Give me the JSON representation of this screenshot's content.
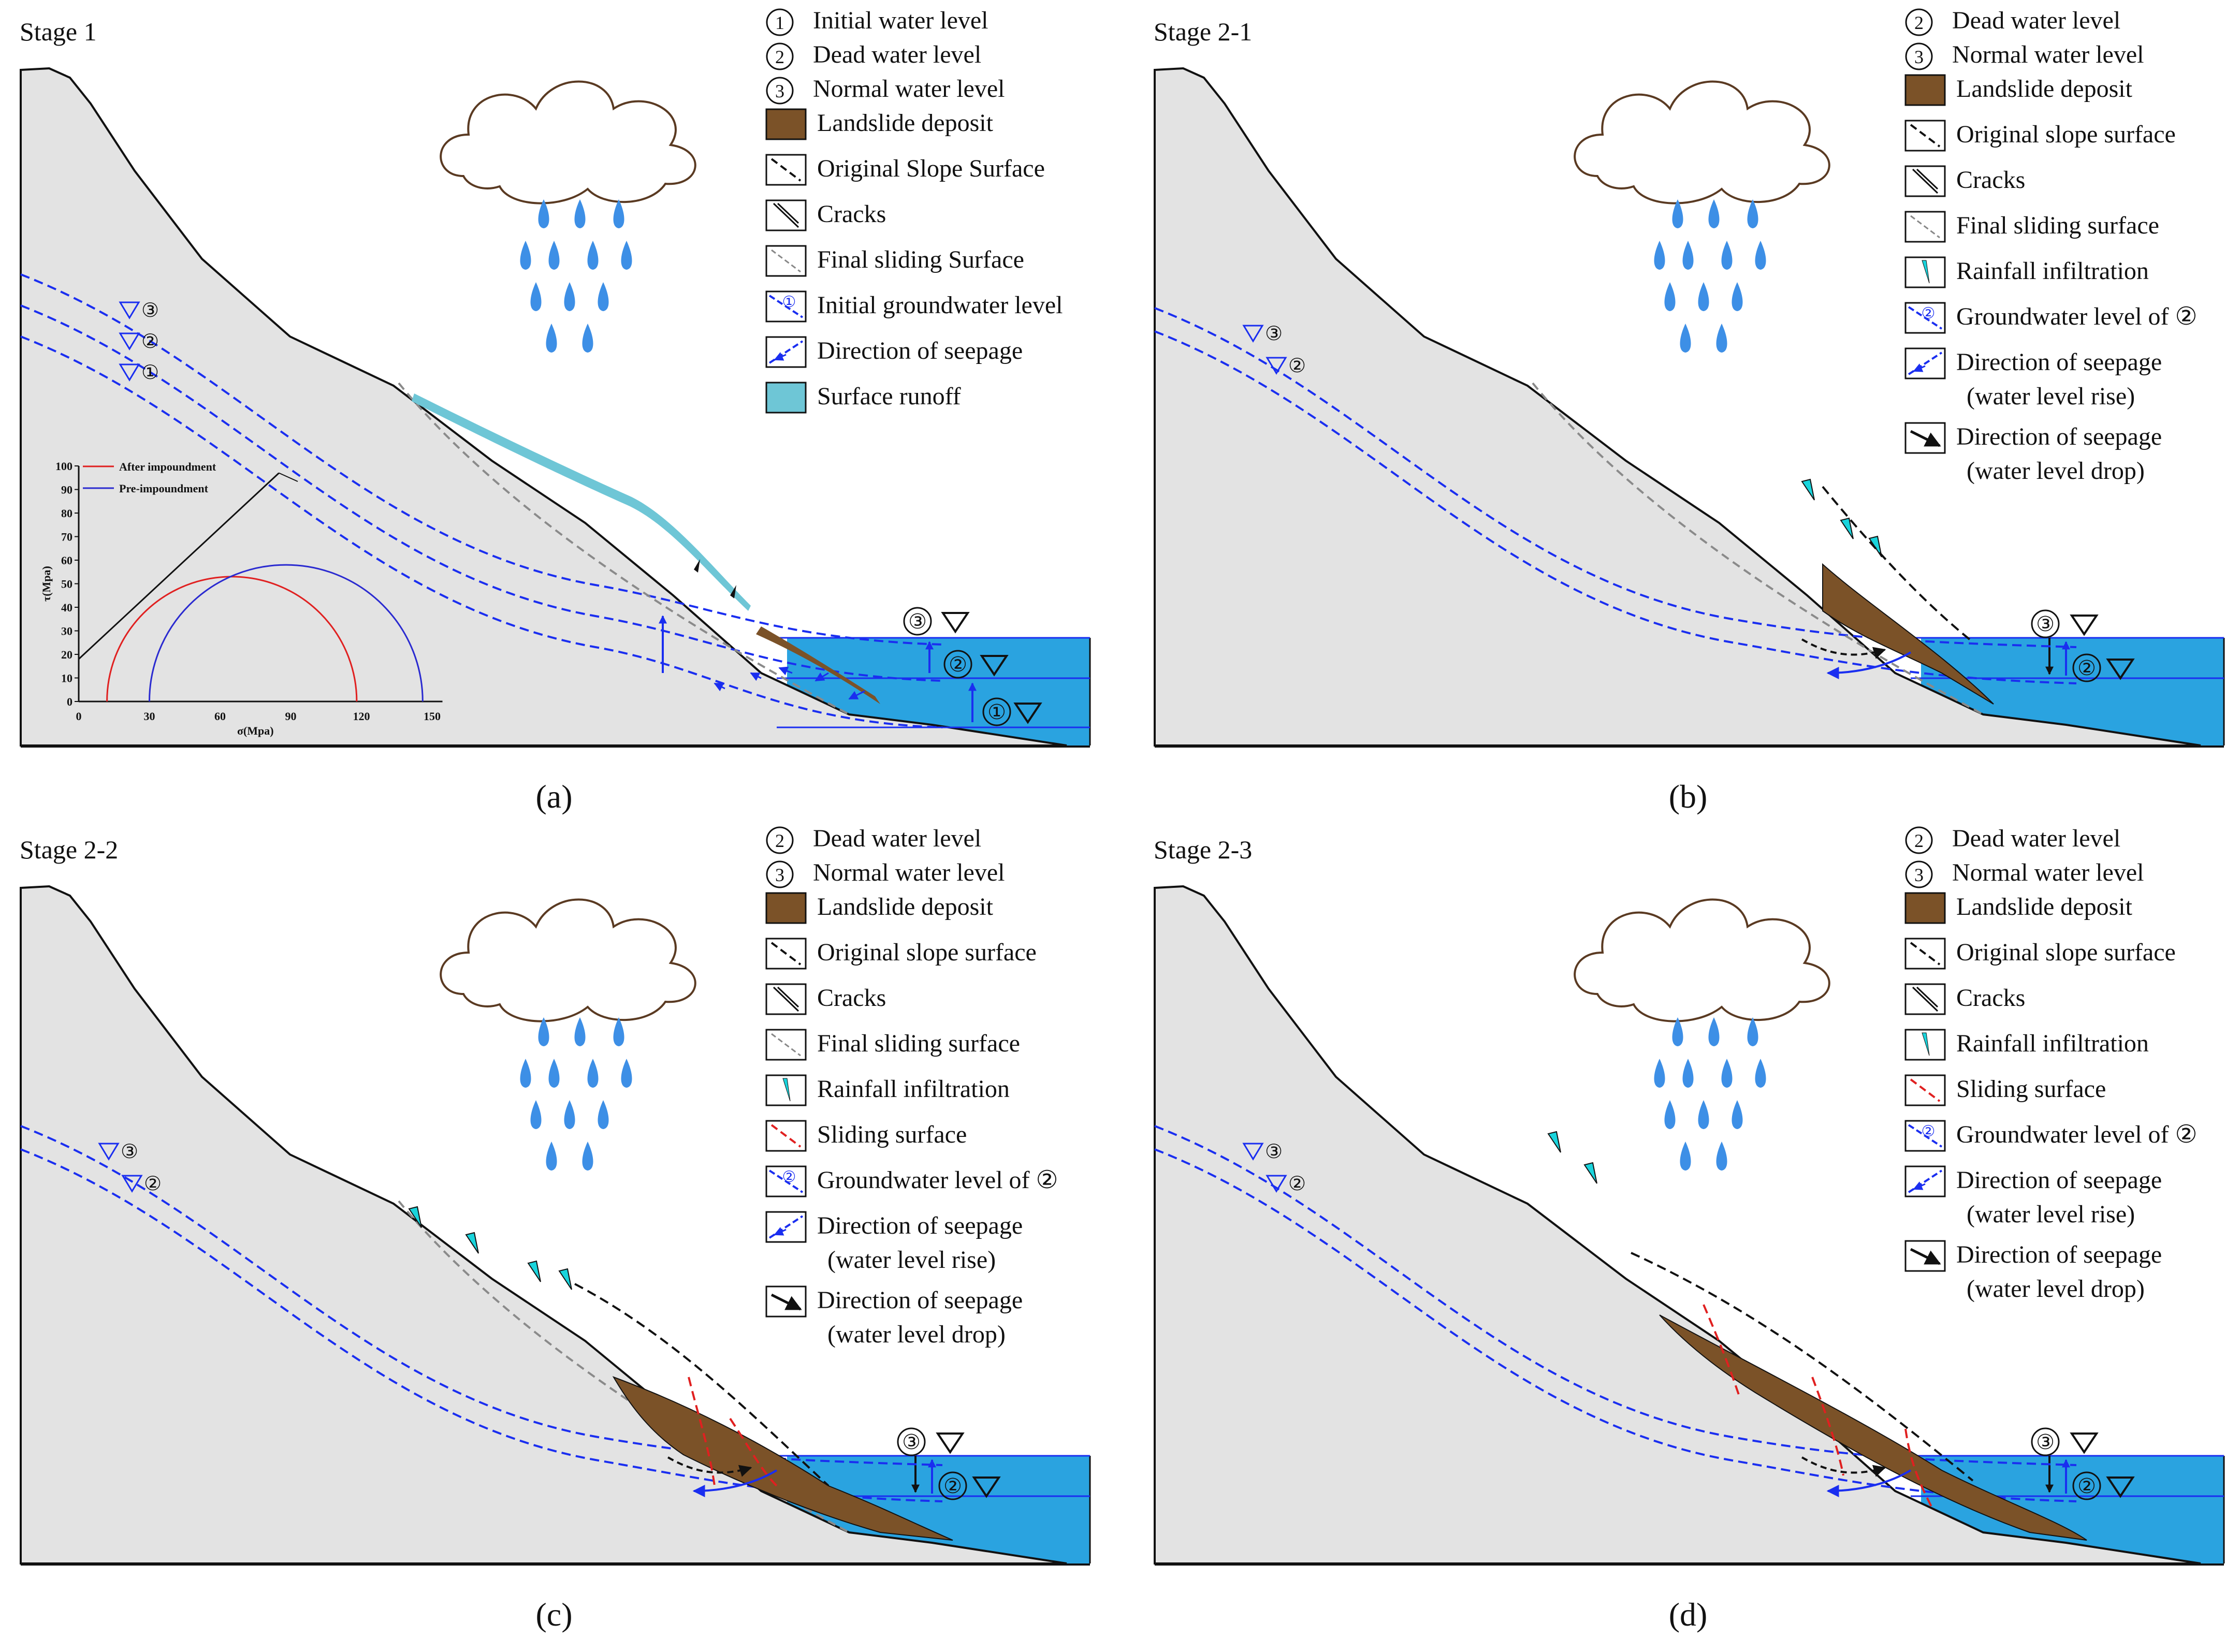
{
  "colors": {
    "ground": "#e3e3e3",
    "water": "#2aa3e0",
    "deposit": "#7b5228",
    "runoff": "#6ec6d6",
    "groundwater": "#1a2ef0",
    "sliding": "#e02020",
    "infiltration": "#19d4dc",
    "rain": "#3d8fe6",
    "mohr_after": "#e02020",
    "mohr_before": "#2a2ad0"
  },
  "panels": [
    {
      "id": "a",
      "stage": "Stage 1",
      "caption": "(a)",
      "legend": [
        {
          "icon": "circle-1-icon",
          "label": "Initial water level"
        },
        {
          "icon": "circle-2-icon",
          "label": "Dead water level"
        },
        {
          "icon": "circle-3-icon",
          "label": "Normal water level"
        },
        {
          "icon": "landslide-deposit-swatch-icon",
          "label": "Landslide deposit"
        },
        {
          "icon": "original-slope-surface-icon",
          "label": "Original Slope Surface"
        },
        {
          "icon": "cracks-icon",
          "label": "Cracks"
        },
        {
          "icon": "final-sliding-surface-icon",
          "label": "Final sliding Surface"
        },
        {
          "icon": "groundwater-level-icon",
          "label": "Initial groundwater level",
          "marker": "①"
        },
        {
          "icon": "seepage-rise-icon",
          "label": "Direction of seepage"
        },
        {
          "icon": "surface-runoff-swatch-icon",
          "label": "Surface runoff"
        }
      ],
      "gw_markers": [
        "③",
        "②",
        "①"
      ],
      "water_markers": [
        "③",
        "②",
        "①"
      ],
      "mohr": {
        "legend": [
          "After impoundment",
          "Pre-impoundment"
        ],
        "xlabel": "σ(Mpa)",
        "ylabel": "τ(Mpa)",
        "xticks": [
          "0",
          "30",
          "60",
          "90",
          "120",
          "150"
        ],
        "yticks": [
          "0",
          "10",
          "20",
          "30",
          "40",
          "50",
          "60",
          "70",
          "80",
          "90",
          "100"
        ]
      }
    },
    {
      "id": "b",
      "stage": "Stage 2-1",
      "caption": "(b)",
      "legend": [
        {
          "icon": "circle-2-icon",
          "label": "Dead water level"
        },
        {
          "icon": "circle-3-icon",
          "label": "Normal water level"
        },
        {
          "icon": "landslide-deposit-swatch-icon",
          "label": "Landslide deposit"
        },
        {
          "icon": "original-slope-surface-icon",
          "label": "Original slope surface"
        },
        {
          "icon": "cracks-icon",
          "label": "Cracks"
        },
        {
          "icon": "final-sliding-surface-icon",
          "label": "Final sliding surface"
        },
        {
          "icon": "rainfall-infiltration-icon",
          "label": "Rainfall infiltration"
        },
        {
          "icon": "groundwater-level-icon",
          "label": "Groundwater level of ②",
          "marker": "②"
        },
        {
          "icon": "seepage-rise-icon",
          "label": "Direction of seepage",
          "label2": "(water level rise)"
        },
        {
          "icon": "seepage-drop-icon",
          "label": "Direction of seepage",
          "label2": "(water level drop)"
        }
      ],
      "gw_markers": [
        "③",
        "②"
      ],
      "water_markers": [
        "③",
        "②"
      ]
    },
    {
      "id": "c",
      "stage": "Stage 2-2",
      "caption": "(c)",
      "legend": [
        {
          "icon": "circle-2-icon",
          "label": "Dead water level"
        },
        {
          "icon": "circle-3-icon",
          "label": "Normal water level"
        },
        {
          "icon": "landslide-deposit-swatch-icon",
          "label": "Landslide deposit"
        },
        {
          "icon": "original-slope-surface-icon",
          "label": "Original slope surface"
        },
        {
          "icon": "cracks-icon",
          "label": "Cracks"
        },
        {
          "icon": "final-sliding-surface-icon",
          "label": "Final sliding surface"
        },
        {
          "icon": "rainfall-infiltration-icon",
          "label": "Rainfall infiltration"
        },
        {
          "icon": "sliding-surface-icon",
          "label": "Sliding surface"
        },
        {
          "icon": "groundwater-level-icon",
          "label": "Groundwater level of ②",
          "marker": "②"
        },
        {
          "icon": "seepage-rise-icon",
          "label": "Direction of seepage",
          "label2": "(water level rise)"
        },
        {
          "icon": "seepage-drop-icon",
          "label": "Direction of seepage",
          "label2": "(water level drop)"
        }
      ],
      "gw_markers": [
        "③",
        "②"
      ],
      "water_markers": [
        "③",
        "②"
      ]
    },
    {
      "id": "d",
      "stage": "Stage 2-3",
      "caption": "(d)",
      "legend": [
        {
          "icon": "circle-2-icon",
          "label": "Dead water level"
        },
        {
          "icon": "circle-3-icon",
          "label": "Normal water level"
        },
        {
          "icon": "landslide-deposit-swatch-icon",
          "label": "Landslide deposit"
        },
        {
          "icon": "original-slope-surface-icon",
          "label": "Original slope surface"
        },
        {
          "icon": "cracks-icon",
          "label": "Cracks"
        },
        {
          "icon": "rainfall-infiltration-icon",
          "label": "Rainfall infiltration"
        },
        {
          "icon": "sliding-surface-icon",
          "label": "Sliding surface"
        },
        {
          "icon": "groundwater-level-icon",
          "label": "Groundwater level of ②",
          "marker": "②"
        },
        {
          "icon": "seepage-rise-icon",
          "label": "Direction of seepage",
          "label2": "(water level rise)"
        },
        {
          "icon": "seepage-drop-icon",
          "label": "Direction of seepage",
          "label2": "(water level drop)"
        }
      ],
      "gw_markers": [
        "③",
        "②"
      ],
      "water_markers": [
        "③",
        "②"
      ]
    }
  ]
}
